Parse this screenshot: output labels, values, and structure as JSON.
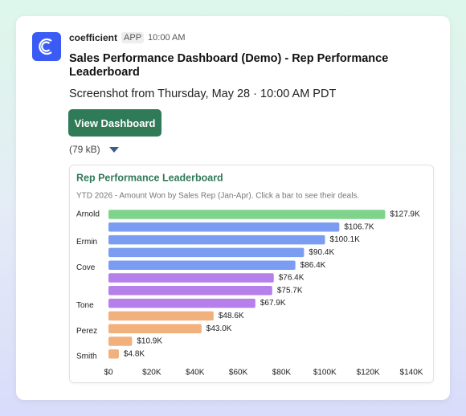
{
  "app": {
    "name": "coefficient",
    "badge": "APP",
    "time": "10:00 AM"
  },
  "message": {
    "title": "Sales Performance Dashboard (Demo) - Rep Performance Leaderboard",
    "subtitle": "Screenshot from Thursday, May 28 · 10:00 AM PDT",
    "button": "View Dashboard",
    "file_size": "(79 kB)"
  },
  "chart_data": {
    "type": "hbar",
    "title": "Rep Performance Leaderboard",
    "subtitle": "YTD 2026 - Amount Won by Sales Rep (Jan-Apr). Click a bar to see their deals.",
    "categories": [
      "Arnold",
      null,
      "Ermin",
      null,
      "Cove",
      null,
      null,
      "Tone",
      null,
      "Perez",
      null,
      "Smith"
    ],
    "values": [
      127900,
      106700,
      100100,
      90400,
      86400,
      76400,
      75700,
      67900,
      48600,
      43000,
      10900,
      4800
    ],
    "value_labels": [
      "$127.9K",
      "$106.7K",
      "$100.1K",
      "$90.4K",
      "$86.4K",
      "$76.4K",
      "$75.7K",
      "$67.9K",
      "$48.6K",
      "$43.0K",
      "$10.9K",
      "$4.8K"
    ],
    "colors": [
      "#7fd38b",
      "#7b9df1",
      "#7b9df1",
      "#7b9df1",
      "#7b9df1",
      "#b680ea",
      "#b680ea",
      "#b680ea",
      "#f2b07c",
      "#f2b07c",
      "#f2b07c",
      "#f2b07c"
    ],
    "xlim": [
      0,
      140000
    ],
    "xticks": [
      {
        "value": 0,
        "label": "$0"
      },
      {
        "value": 20000,
        "label": "$20K"
      },
      {
        "value": 40000,
        "label": "$40K"
      },
      {
        "value": 60000,
        "label": "$60K"
      },
      {
        "value": 80000,
        "label": "$80K"
      },
      {
        "value": 100000,
        "label": "$100K"
      },
      {
        "value": 120000,
        "label": "$120K"
      },
      {
        "value": 140000,
        "label": "$140K"
      }
    ]
  }
}
